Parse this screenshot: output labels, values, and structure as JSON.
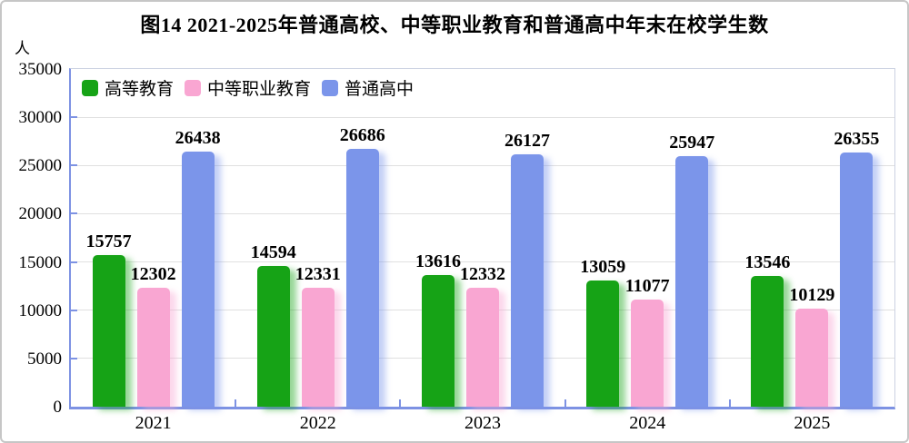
{
  "figure": {
    "title": "图14 2021-2025年普通高校、中等职业教育和普通高中年末在校学生数",
    "unit_label": "人"
  },
  "chart_data": {
    "type": "bar",
    "title": "图14 2021-2025年普通高校、中等职业教育和普通高中年末在校学生数",
    "ylabel": "人",
    "xlabel": "",
    "categories": [
      "2021",
      "2022",
      "2023",
      "2024",
      "2025"
    ],
    "series": [
      {
        "name": "高等教育",
        "key": "higher-education",
        "color": "#16a316",
        "values": [
          15757,
          14594,
          13616,
          13059,
          13546
        ]
      },
      {
        "name": "中等职业教育",
        "key": "secondary-vocational-education",
        "color": "#f9a6d2",
        "values": [
          12302,
          12331,
          12332,
          11077,
          10129
        ]
      },
      {
        "name": "普通高中",
        "key": "regular-high-school",
        "color": "#7b95ea",
        "values": [
          26438,
          26686,
          26127,
          25947,
          26355
        ]
      }
    ],
    "ylim": [
      0,
      35000
    ],
    "yticks": [
      0,
      5000,
      10000,
      15000,
      20000,
      25000,
      30000,
      35000
    ],
    "grid": "horizontal",
    "legend_position": "top-left-inside",
    "bar_labels": true,
    "axis_color": "#7d92e3",
    "grid_color": "#e0e0e0"
  }
}
